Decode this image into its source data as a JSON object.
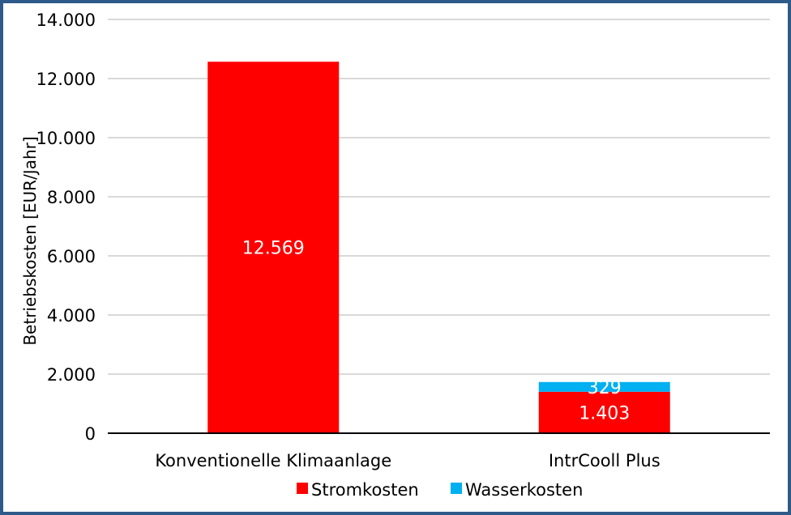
{
  "chart_data": {
    "type": "bar",
    "stacked": true,
    "categories": [
      "Konventionelle Klimaanlage",
      "IntrCooll Plus"
    ],
    "series": [
      {
        "name": "Stromkosten",
        "values": [
          12569,
          1403
        ],
        "labels": [
          "12.569",
          "1.403"
        ],
        "color": "#ff0000"
      },
      {
        "name": "Wasserkosten",
        "values": [
          0,
          329
        ],
        "labels": [
          "",
          "329"
        ],
        "color": "#00b0f0"
      }
    ],
    "ylabel": "Betriebskosten [EUR/Jahr]",
    "xlabel": "",
    "ylim": [
      0,
      14000
    ],
    "yticks": [
      0,
      2000,
      4000,
      6000,
      8000,
      10000,
      12000,
      14000
    ],
    "ytick_labels": [
      "0",
      "2.000",
      "4.000",
      "6.000",
      "8.000",
      "10.000",
      "12.000",
      "14.000"
    ],
    "grid": true,
    "legend_position": "bottom"
  }
}
